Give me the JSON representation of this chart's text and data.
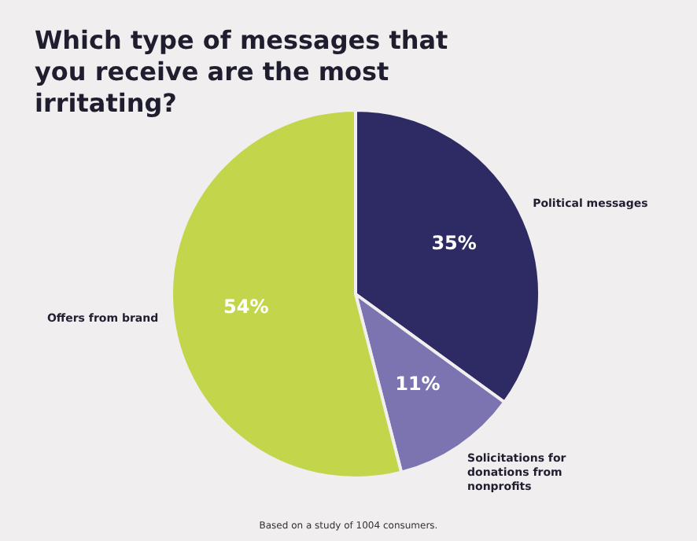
{
  "chart_data": {
    "type": "pie",
    "title": "Which type of messages that you receive are the most irritating?",
    "categories": [
      "Political messages",
      "Solicitations for donations from nonprofits",
      "Offers from brand"
    ],
    "values": [
      35,
      11,
      54
    ],
    "colors": [
      "#2e2a63",
      "#7b74b1",
      "#c3d54b"
    ],
    "value_labels": [
      "35%",
      "11%",
      "54%"
    ],
    "legend": false,
    "annotations": [
      "Based on a study of 1004 consumers."
    ]
  }
}
